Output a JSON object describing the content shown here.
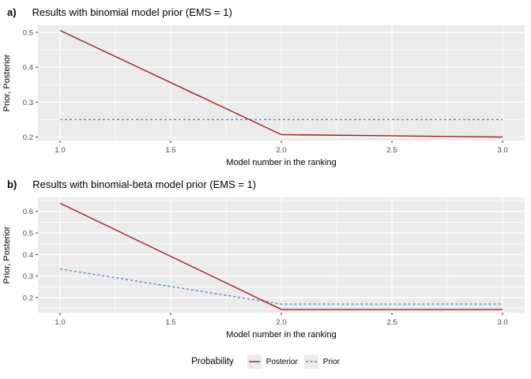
{
  "figure": {
    "background": "#ffffff",
    "panel_background": "#ebebeb",
    "grid_color": "#ffffff",
    "tick_color": "#333333",
    "tick_text_color": "#4d4d4d",
    "posterior_color": "#9a1f1f",
    "prior_color": "#5585bb"
  },
  "chart_data": [
    {
      "type": "line",
      "panel_label": "a)",
      "title": "Results with binomial model prior (EMS = 1)",
      "xlabel": "Model number in the ranking",
      "ylabel": "Prior, Posterior",
      "x": [
        1,
        2,
        3
      ],
      "series": [
        {
          "name": "Posterior",
          "style": "solid",
          "color": "#9a1f1f",
          "values": [
            0.505,
            0.207,
            0.2
          ]
        },
        {
          "name": "Prior",
          "style": "dashed",
          "color": "#5585bb",
          "values": [
            0.25,
            0.25,
            0.25
          ]
        }
      ],
      "xlim": [
        0.9,
        3.1
      ],
      "ylim": [
        0.19,
        0.52
      ],
      "xticks": [
        1.0,
        1.5,
        2.0,
        2.5,
        3.0
      ],
      "xtick_labels": [
        "1.0",
        "1.5",
        "2.0",
        "2.5",
        "3.0"
      ],
      "yticks": [
        0.2,
        0.3,
        0.4,
        0.5
      ],
      "ytick_labels": [
        "0.2",
        "0.3",
        "0.4",
        "0.5"
      ],
      "grid": true,
      "legend_position": "bottom"
    },
    {
      "type": "line",
      "panel_label": "b)",
      "title": "Results with binomial-beta model prior (EMS = 1)",
      "xlabel": "Model number in the ranking",
      "ylabel": "Prior, Posterior",
      "x": [
        1,
        2,
        3
      ],
      "series": [
        {
          "name": "Posterior",
          "style": "solid",
          "color": "#9a1f1f",
          "values": [
            0.638,
            0.145,
            0.145
          ]
        },
        {
          "name": "Prior",
          "style": "dashed",
          "color": "#5585bb",
          "values": [
            0.333,
            0.17,
            0.17
          ]
        }
      ],
      "xlim": [
        0.9,
        3.1
      ],
      "ylim": [
        0.13,
        0.665
      ],
      "xticks": [
        1.0,
        1.5,
        2.0,
        2.5,
        3.0
      ],
      "xtick_labels": [
        "1.0",
        "1.5",
        "2.0",
        "2.5",
        "3.0"
      ],
      "yticks": [
        0.2,
        0.3,
        0.4,
        0.5,
        0.6
      ],
      "ytick_labels": [
        "0.2",
        "0.3",
        "0.4",
        "0.5",
        "0.6"
      ],
      "grid": true,
      "legend_position": "bottom"
    }
  ],
  "legend": {
    "title": "Probability",
    "items": [
      {
        "label": "Posterior",
        "style": "solid",
        "color": "#9a1f1f"
      },
      {
        "label": "Prior",
        "style": "dashed",
        "color": "#5585bb"
      }
    ]
  }
}
